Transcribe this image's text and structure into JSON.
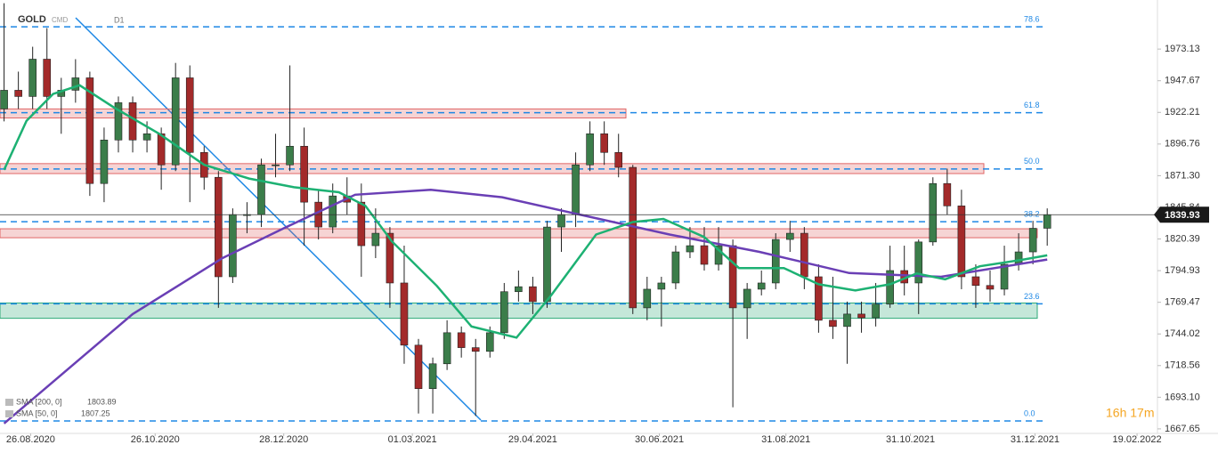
{
  "chart_data": {
    "type": "candlestick",
    "symbol": "GOLD",
    "market": "CMD",
    "timeframe": "D1",
    "countdown": "16h 17m",
    "xlim": [
      "11.08.2020",
      "01.03.2022"
    ],
    "xticks": [
      "26.08.2020",
      "26.10.2020",
      "28.12.2020",
      "01.03.2021",
      "29.04.2021",
      "30.06.2021",
      "31.08.2021",
      "31.10.2021",
      "31.12.2021",
      "19.02.2022"
    ],
    "ylim": [
      1664,
      2012.6
    ],
    "yticks": [
      1973.13,
      1947.67,
      1922.21,
      1896.76,
      {
        "value": 1871.3,
        "label": "1871.30"
      },
      1845.84,
      1820.39,
      1794.93,
      1769.47,
      1744.02,
      1718.56,
      {
        "value": 1693.1,
        "label": "1693.10"
      },
      1667.65
    ],
    "up_color": "#3b7d4a",
    "down_color": "#a32a2a",
    "dates": [
      "10.08.2020",
      "17.08.2020",
      "24.08.2020",
      "31.08.2020",
      "07.09.2020",
      "14.09.2020",
      "21.09.2020",
      "28.09.2020",
      "05.10.2020",
      "12.10.2020",
      "19.10.2020",
      "26.10.2020",
      "02.11.2020",
      "09.11.2020",
      "16.11.2020",
      "23.11.2020",
      "30.11.2020",
      "07.12.2020",
      "14.12.2020",
      "21.12.2020",
      "28.12.2020",
      "04.01.2021",
      "11.01.2021",
      "18.01.2021",
      "25.01.2021",
      "01.02.2021",
      "08.02.2021",
      "15.02.2021",
      "22.02.2021",
      "01.03.2021",
      "08.03.2021",
      "15.03.2021",
      "22.03.2021",
      "29.03.2021",
      "05.04.2021",
      "12.04.2021",
      "19.04.2021",
      "26.04.2021",
      "03.05.2021",
      "10.05.2021",
      "17.05.2021",
      "24.05.2021",
      "31.05.2021",
      "07.06.2021",
      "14.06.2021",
      "21.06.2021",
      "28.06.2021",
      "05.07.2021",
      "12.07.2021",
      "19.07.2021",
      "26.07.2021",
      "02.08.2021",
      "09.08.2021",
      "16.08.2021",
      "23.08.2021",
      "30.08.2021",
      "06.09.2021",
      "13.09.2021",
      "20.09.2021",
      "27.09.2021",
      "04.10.2021",
      "11.10.2021",
      "18.10.2021",
      "25.10.2021",
      "01.11.2021",
      "08.11.2021",
      "15.11.2021",
      "22.11.2021",
      "29.11.2021",
      "06.12.2021",
      "13.12.2021",
      "20.12.2021",
      "27.12.2021",
      "03.01.2022"
    ],
    "ohlc": [
      [
        1925,
        2010,
        1915,
        1940
      ],
      [
        1940,
        1955,
        1925,
        1935
      ],
      [
        1935,
        1975,
        1925,
        1965
      ],
      [
        1965,
        1990,
        1925,
        1935
      ],
      [
        1935,
        1950,
        1905,
        1940
      ],
      [
        1940,
        1965,
        1930,
        1950
      ],
      [
        1950,
        1955,
        1855,
        1865
      ],
      [
        1865,
        1910,
        1850,
        1900
      ],
      [
        1900,
        1935,
        1890,
        1930
      ],
      [
        1930,
        1935,
        1890,
        1900
      ],
      [
        1900,
        1915,
        1890,
        1905
      ],
      [
        1905,
        1910,
        1860,
        1880
      ],
      [
        1880,
        1962,
        1875,
        1950
      ],
      [
        1950,
        1960,
        1850,
        1890
      ],
      [
        1890,
        1895,
        1860,
        1870
      ],
      [
        1870,
        1875,
        1765,
        1790
      ],
      [
        1790,
        1845,
        1785,
        1840
      ],
      [
        1840,
        1850,
        1825,
        1840
      ],
      [
        1840,
        1885,
        1830,
        1880
      ],
      [
        1880,
        1905,
        1870,
        1880
      ],
      [
        1880,
        1960,
        1875,
        1895
      ],
      [
        1895,
        1910,
        1815,
        1850
      ],
      [
        1850,
        1860,
        1820,
        1830
      ],
      [
        1830,
        1865,
        1825,
        1855
      ],
      [
        1855,
        1870,
        1840,
        1850
      ],
      [
        1850,
        1865,
        1790,
        1815
      ],
      [
        1815,
        1845,
        1805,
        1825
      ],
      [
        1825,
        1830,
        1765,
        1785
      ],
      [
        1785,
        1815,
        1720,
        1735
      ],
      [
        1735,
        1740,
        1680,
        1700
      ],
      [
        1700,
        1725,
        1680,
        1720
      ],
      [
        1720,
        1755,
        1715,
        1745
      ],
      [
        1745,
        1750,
        1725,
        1733
      ],
      [
        1733,
        1740,
        1678,
        1730
      ],
      [
        1730,
        1750,
        1725,
        1745
      ],
      [
        1745,
        1785,
        1740,
        1778
      ],
      [
        1778,
        1795,
        1770,
        1782
      ],
      [
        1782,
        1790,
        1760,
        1770
      ],
      [
        1770,
        1835,
        1765,
        1830
      ],
      [
        1830,
        1845,
        1810,
        1840
      ],
      [
        1840,
        1890,
        1830,
        1880
      ],
      [
        1880,
        1915,
        1875,
        1905
      ],
      [
        1905,
        1915,
        1880,
        1890
      ],
      [
        1890,
        1905,
        1870,
        1878
      ],
      [
        1878,
        1880,
        1760,
        1765
      ],
      [
        1765,
        1790,
        1755,
        1780
      ],
      [
        1780,
        1790,
        1750,
        1785
      ],
      [
        1785,
        1815,
        1780,
        1810
      ],
      [
        1810,
        1830,
        1805,
        1815
      ],
      [
        1815,
        1830,
        1795,
        1800
      ],
      [
        1800,
        1830,
        1795,
        1815
      ],
      [
        1815,
        1820,
        1685,
        1765
      ],
      [
        1765,
        1785,
        1740,
        1780
      ],
      [
        1780,
        1795,
        1775,
        1785
      ],
      [
        1785,
        1825,
        1780,
        1820
      ],
      [
        1820,
        1835,
        1810,
        1825
      ],
      [
        1825,
        1830,
        1780,
        1790
      ],
      [
        1790,
        1800,
        1745,
        1755
      ],
      [
        1755,
        1790,
        1740,
        1750
      ],
      [
        1750,
        1770,
        1720,
        1760
      ],
      [
        1760,
        1770,
        1745,
        1757
      ],
      [
        1757,
        1785,
        1750,
        1768
      ],
      [
        1768,
        1815,
        1765,
        1795
      ],
      [
        1795,
        1815,
        1775,
        1785
      ],
      [
        1785,
        1820,
        1760,
        1818
      ],
      [
        1818,
        1870,
        1815,
        1865
      ],
      [
        1865,
        1877,
        1840,
        1847
      ],
      [
        1847,
        1860,
        1780,
        1790
      ],
      [
        1790,
        1800,
        1765,
        1783
      ],
      [
        1783,
        1795,
        1770,
        1780
      ],
      [
        1780,
        1815,
        1775,
        1800
      ],
      [
        1800,
        1825,
        1795,
        1810
      ],
      [
        1810,
        1835,
        1800,
        1829
      ],
      [
        1829,
        1845,
        1815,
        1839.93
      ]
    ],
    "series": [
      {
        "name": "SMA [200, 0]",
        "color": "#6a3fb5",
        "last": 1803.89,
        "x": [
          "13.08.2020",
          "15.10.2020",
          "28.11.2020",
          "28.12.2020",
          "01.02.2021",
          "10.03.2021",
          "14.04.2021",
          "22.05.2021",
          "05.07.2021",
          "18.08.2021",
          "01.10.2021",
          "15.11.2021",
          "06.01.2022"
        ],
        "values": [
          1672,
          1760,
          1805,
          1829,
          1856,
          1860,
          1854,
          1840,
          1824,
          1810,
          1793,
          1790,
          1803.89
        ]
      },
      {
        "name": "SMA [50, 0]",
        "color": "#1db173",
        "last": 1807.25,
        "x": [
          "13.08.2020",
          "24.08.2020",
          "06.09.2020",
          "19.09.2020",
          "06.10.2020",
          "28.10.2020",
          "19.11.2020",
          "11.12.2020",
          "02.01.2021",
          "24.01.2021",
          "06.02.2021",
          "19.02.2021",
          "13.03.2021",
          "30.03.2021",
          "21.04.2021",
          "08.05.2021",
          "30.05.2021",
          "17.06.2021",
          "02.07.2021",
          "22.07.2021",
          "08.08.2021",
          "30.08.2021",
          "16.09.2021",
          "04.10.2021",
          "21.10.2021",
          "03.11.2021",
          "17.11.2021",
          "04.12.2021",
          "26.12.2021",
          "06.01.2022"
        ],
        "values": [
          1876,
          1915.5,
          1937,
          1944,
          1926,
          1905,
          1880,
          1869,
          1862,
          1858,
          1847,
          1818.5,
          1782.6,
          1750,
          1741,
          1775,
          1824,
          1834,
          1836.5,
          1822,
          1797,
          1797,
          1784,
          1779,
          1784,
          1792.6,
          1788,
          1798.4,
          1804,
          1807.25
        ]
      }
    ],
    "fib_levels": [
      78.6,
      61.8,
      {
        "value": 50,
        "label": "50.0"
      },
      38.2,
      23.6,
      {
        "value": 0,
        "label": "0.0"
      }
    ],
    "fib_prices": [
      1991,
      1922,
      1876.7,
      1834.3,
      1768.2,
      1674
    ],
    "fib_color": "#1e88e5",
    "zones": [
      {
        "low": 1917.7,
        "high": 1925,
        "color": "#e06666"
      },
      {
        "low": 1873,
        "high": 1881,
        "color": "#e06666"
      },
      {
        "low": 1821.4,
        "high": 1828.6,
        "color": "#e06666"
      },
      {
        "low": 1756.6,
        "high": 1768.9,
        "color": "#2eaa78"
      }
    ]
  }
}
